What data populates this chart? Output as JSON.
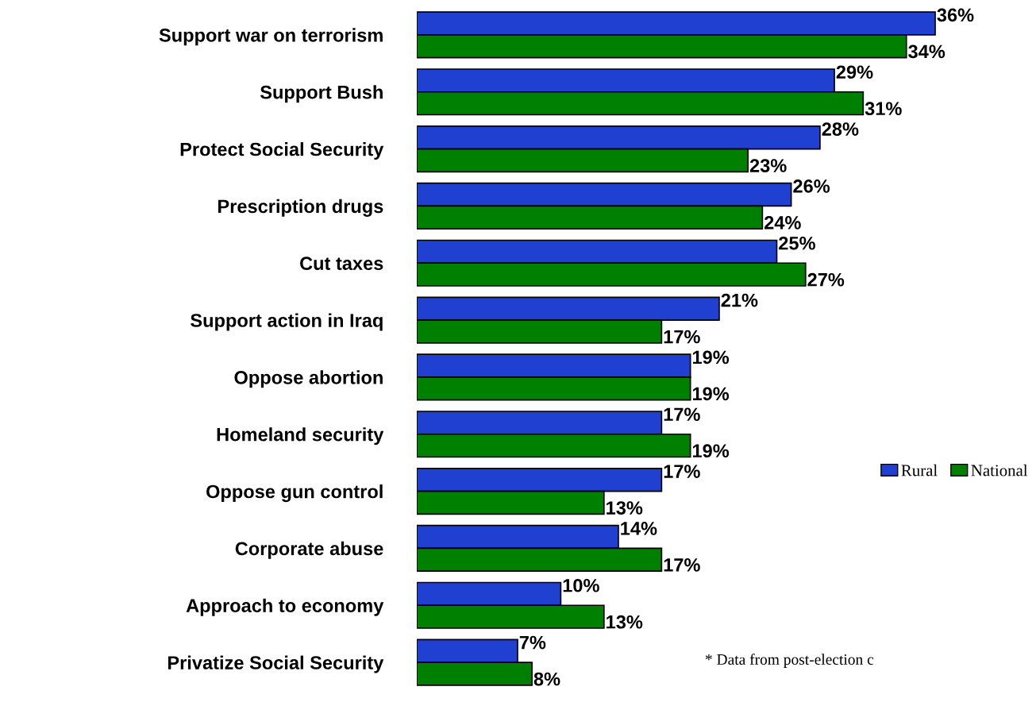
{
  "chart_data": {
    "type": "bar",
    "orientation": "horizontal",
    "categories": [
      "Support war on terrorism",
      "Support Bush",
      "Protect Social Security",
      "Prescription drugs",
      "Cut taxes",
      "Support action in Iraq",
      "Oppose abortion",
      "Homeland security",
      "Oppose gun control",
      "Corporate abuse",
      "Approach to economy",
      "Privatize Social Security"
    ],
    "series": [
      {
        "name": "Rural",
        "color": "#1f40d0",
        "values": [
          36,
          29,
          28,
          26,
          25,
          21,
          19,
          17,
          17,
          14,
          10,
          7
        ],
        "value_labels": [
          "36%",
          "29%",
          "28%",
          "26%",
          "25%",
          "21%",
          "19%",
          "17%",
          "17%",
          "14%",
          "10%",
          "7%"
        ]
      },
      {
        "name": "National",
        "color": "#008000",
        "values": [
          34,
          31,
          23,
          24,
          27,
          17,
          19,
          19,
          13,
          17,
          13,
          8
        ],
        "value_labels": [
          "34%",
          "31%",
          "23%",
          "24%",
          "27%",
          "17%",
          "19%",
          "19%",
          "13%",
          "17%",
          "13%",
          "8%"
        ]
      }
    ],
    "legend": "right",
    "grid": false,
    "annotations": [
      "* Data from post-election c"
    ]
  }
}
